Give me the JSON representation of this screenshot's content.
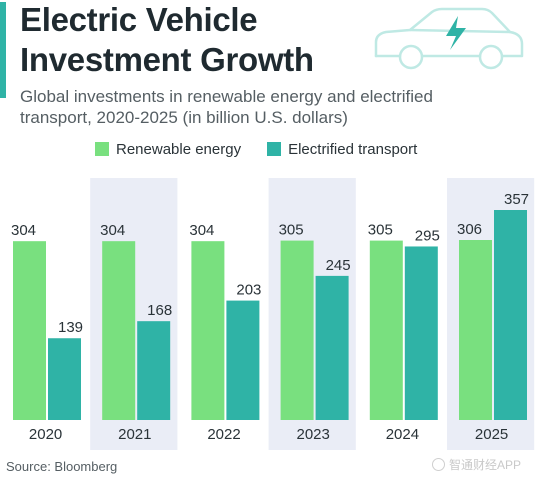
{
  "header": {
    "title_line1": "Electric Vehicle",
    "title_line2": "Investment Growth",
    "subtitle_line1": "Global investments in renewable energy and electrified",
    "subtitle_line2": "transport, 2020-2025 (in billion U.S. dollars)"
  },
  "colors": {
    "renewable": "#79e07f",
    "transport": "#2fb3a6",
    "panel": "#eaedf6",
    "accent": "#2fb3a6",
    "car_outline": "#bfe9e4"
  },
  "icons": {
    "car": "electric-car-icon"
  },
  "footer": {
    "source": "Source: Bloomberg",
    "watermark": "智通财经APP"
  },
  "chart_data": {
    "type": "bar",
    "categories": [
      "2020",
      "2021",
      "2022",
      "2023",
      "2024",
      "2025"
    ],
    "series": [
      {
        "name": "Renewable energy",
        "values": [
          304,
          304,
          304,
          305,
          305,
          306
        ]
      },
      {
        "name": "Electrified transport",
        "values": [
          139,
          168,
          203,
          245,
          295,
          357
        ]
      }
    ],
    "ylim": [
      0,
      380
    ],
    "grid": false,
    "legend_position": "top",
    "shaded_categories": [
      "2021",
      "2023",
      "2025"
    ]
  }
}
